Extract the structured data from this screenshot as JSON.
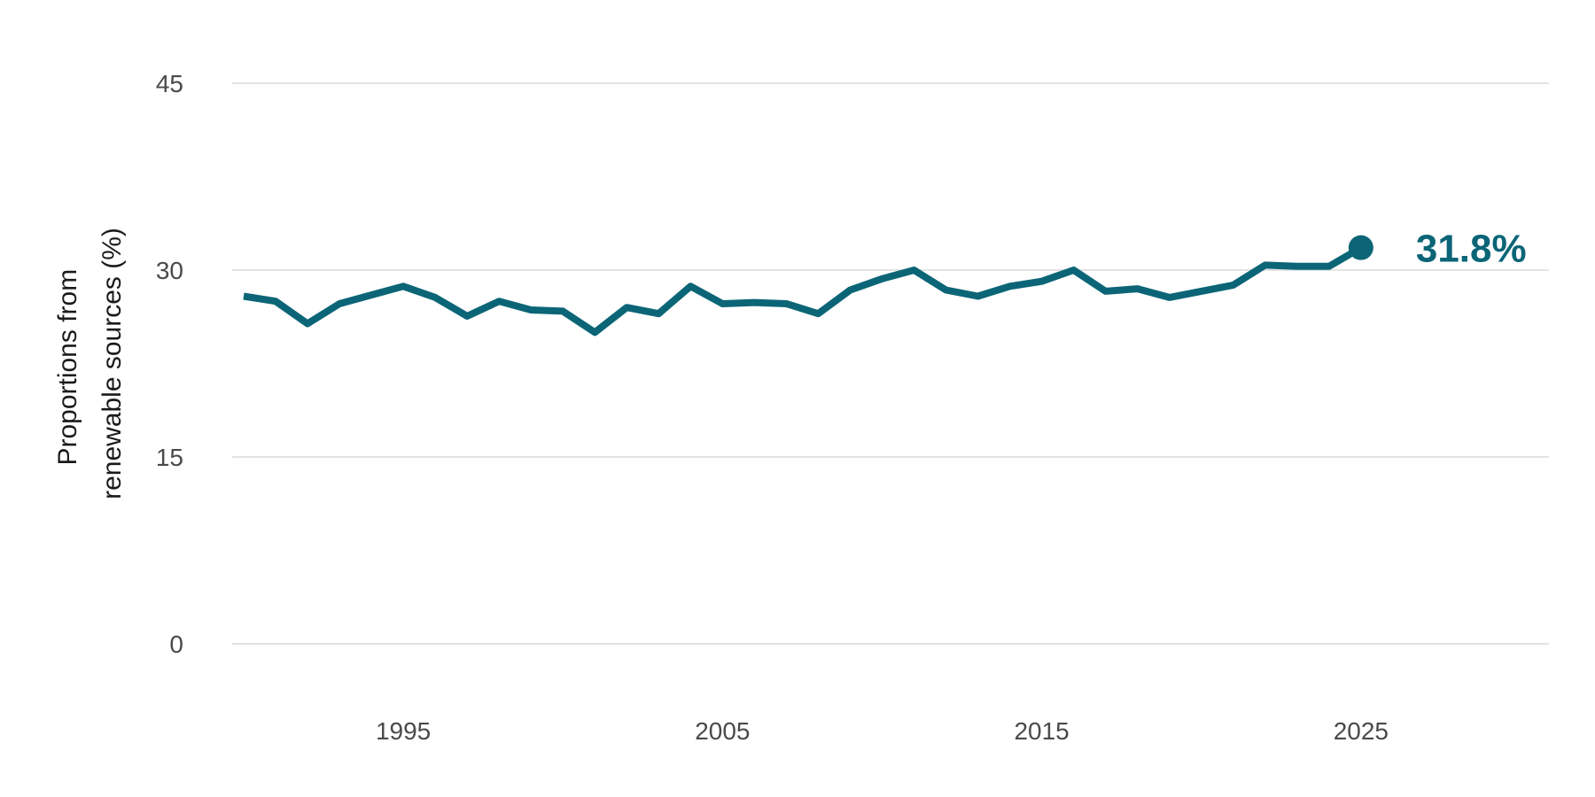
{
  "chart_data": {
    "type": "line",
    "title": "",
    "xlabel": "",
    "ylabel": [
      "Proportions from",
      "renewable sources (%)"
    ],
    "ylim": [
      0,
      45
    ],
    "xlim": [
      1990,
      2031
    ],
    "y_ticks": [
      0,
      15,
      30,
      45
    ],
    "x_ticks": [
      1995,
      2005,
      2015,
      2025
    ],
    "grid": true,
    "colors": {
      "line": "#0b6577",
      "grid": "#e3e3e3",
      "tick_text": "#4a4a4a"
    },
    "series": [
      {
        "x": [
          1990,
          1991,
          1992,
          1993,
          1994,
          1995,
          1996,
          1997,
          1998,
          1999,
          2000,
          2001,
          2002,
          2003,
          2004,
          2005,
          2006,
          2007,
          2008,
          2009,
          2010,
          2011,
          2012,
          2013,
          2014,
          2015,
          2016,
          2017,
          2018,
          2019,
          2020,
          2021,
          2022,
          2023,
          2024,
          2025
        ],
        "y": [
          27.9,
          27.5,
          25.7,
          27.3,
          28.0,
          28.7,
          27.8,
          26.3,
          27.5,
          26.8,
          26.7,
          25.0,
          27.0,
          26.5,
          28.7,
          27.3,
          27.4,
          27.3,
          26.5,
          28.4,
          29.3,
          30.0,
          28.4,
          27.9,
          28.7,
          29.1,
          30.0,
          28.3,
          28.5,
          27.8,
          28.3,
          28.8,
          30.4,
          30.3,
          30.3,
          31.8
        ]
      }
    ],
    "end_label": "31.8%"
  }
}
